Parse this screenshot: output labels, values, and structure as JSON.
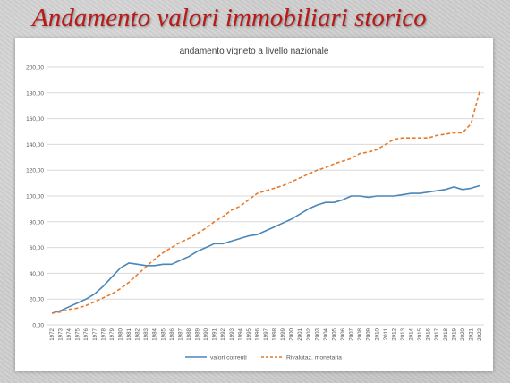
{
  "slide": {
    "title": "Andamento valori immobiliari storico"
  },
  "chart_data": {
    "type": "line",
    "title": "andamento vigneto a livello nazionale",
    "xlabel": "",
    "ylabel": "",
    "ylim": [
      0,
      200
    ],
    "yticks": [
      "0,00",
      "20,00",
      "40,00",
      "60,00",
      "80,00",
      "100,00",
      "120,00",
      "140,00",
      "160,00",
      "180,00",
      "200,00"
    ],
    "grid": true,
    "legend_position": "bottom",
    "x": [
      "1972",
      "1973",
      "1974",
      "1975",
      "1976",
      "1977",
      "1978",
      "1979",
      "1980",
      "1981",
      "1982",
      "1983",
      "1984",
      "1985",
      "1986",
      "1987",
      "1988",
      "1989",
      "1990",
      "1991",
      "1992",
      "1993",
      "1994",
      "1995",
      "1996",
      "1997",
      "1998",
      "1999",
      "2000",
      "2001",
      "2002",
      "2003",
      "2004",
      "2005",
      "2006",
      "2007",
      "2008",
      "2009",
      "2010",
      "2011",
      "2012",
      "2013",
      "2014",
      "2015",
      "2016",
      "2017",
      "2018",
      "2019",
      "2020",
      "2021",
      "2022"
    ],
    "series": [
      {
        "name": "valori correnti",
        "color": "#4a86b8",
        "style": "solid",
        "values": [
          9,
          11,
          14,
          17,
          20,
          24,
          30,
          37,
          44,
          48,
          47,
          46,
          46,
          47,
          47,
          50,
          53,
          57,
          60,
          63,
          63,
          65,
          67,
          69,
          70,
          73,
          76,
          79,
          82,
          86,
          90,
          93,
          95,
          95,
          97,
          100,
          100,
          99,
          100,
          100,
          100,
          101,
          102,
          102,
          103,
          104,
          105,
          107,
          105,
          106,
          108
        ]
      },
      {
        "name": "Rivalutaz. monetaria",
        "color": "#e57a2b",
        "style": "dashed",
        "values": [
          9,
          10,
          12,
          13,
          15,
          18,
          21,
          24,
          28,
          33,
          39,
          45,
          51,
          56,
          60,
          64,
          67,
          71,
          75,
          80,
          84,
          89,
          92,
          97,
          102,
          104,
          106,
          108,
          111,
          114,
          117,
          120,
          122,
          125,
          127,
          129,
          133,
          134,
          136,
          140,
          144,
          145,
          145,
          145,
          145,
          147,
          148,
          149,
          149,
          156,
          181
        ]
      }
    ]
  }
}
